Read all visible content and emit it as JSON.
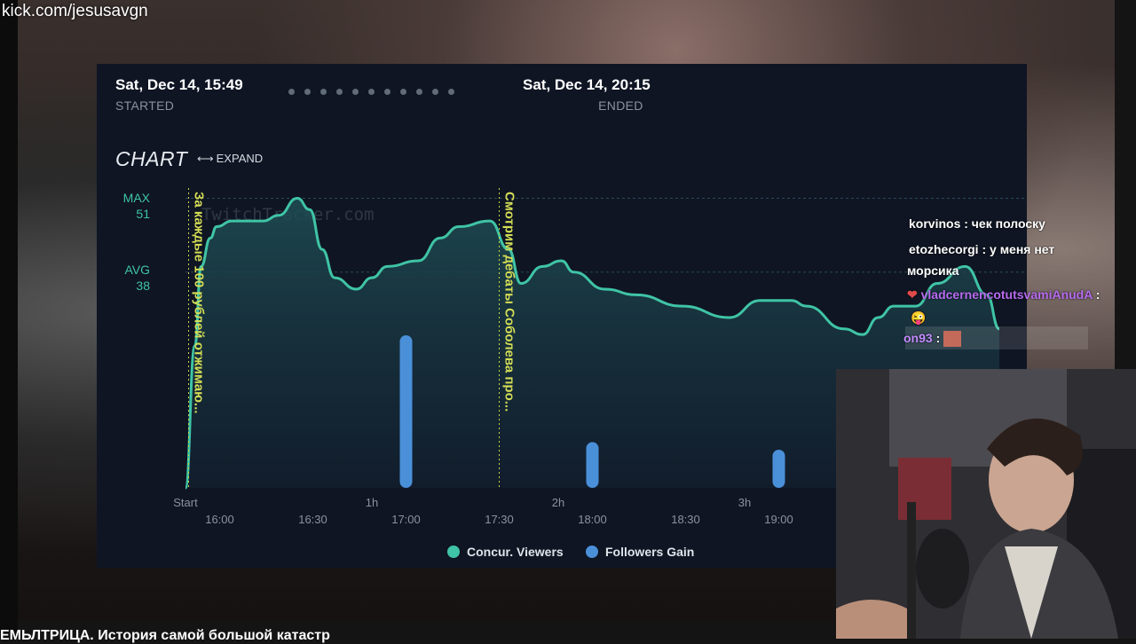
{
  "overlay": {
    "url": "kick.com/jesusavgn",
    "ticker": "ЕМЬЛТРИЦА. История самой большой катастр"
  },
  "tracker": {
    "started": {
      "time": "Sat, Dec 14, 15:49",
      "label": "STARTED"
    },
    "ended": {
      "time": "Sat, Dec 14, 20:15",
      "label": "ENDED"
    },
    "progress_dots": 11,
    "chart_title": "CHART",
    "expand_icon": "arrows-horizontal-icon",
    "expand_label": "EXPAND",
    "watermark": "TwitchTracker.com",
    "max": {
      "label": "MAX",
      "value": "51"
    },
    "avg": {
      "label": "AVG",
      "value": "38"
    },
    "legend": [
      {
        "label": "Concur. Viewers",
        "color": "#3fc4a5"
      },
      {
        "label": "Followers Gain",
        "color": "#4a90d9"
      }
    ]
  },
  "chart_data": {
    "type": "line",
    "x_unit": "minutes since start",
    "xlim": [
      0,
      266
    ],
    "ylim": [
      0,
      55
    ],
    "primary_ticks": [
      {
        "x": 0,
        "label": "Start"
      },
      {
        "x": 60,
        "label": "1h"
      },
      {
        "x": 120,
        "label": "2h"
      },
      {
        "x": 180,
        "label": "3h"
      }
    ],
    "time_ticks": [
      {
        "x": 11,
        "label": "16:00"
      },
      {
        "x": 41,
        "label": "16:30"
      },
      {
        "x": 71,
        "label": "17:00"
      },
      {
        "x": 101,
        "label": "17:30"
      },
      {
        "x": 131,
        "label": "18:00"
      },
      {
        "x": 161,
        "label": "18:30"
      },
      {
        "x": 191,
        "label": "19:00"
      }
    ],
    "annotations": [
      {
        "x": 1,
        "text": "За каждые 100 рублей отжимаю..."
      },
      {
        "x": 101,
        "text": "Смотрим дебаты Соболева про..."
      }
    ],
    "series": [
      {
        "name": "Concur. Viewers",
        "color": "#3fc4a5",
        "kind": "area",
        "points": [
          [
            0,
            0
          ],
          [
            3,
            25
          ],
          [
            5,
            39
          ],
          [
            8,
            44
          ],
          [
            10,
            46
          ],
          [
            15,
            47
          ],
          [
            25,
            47
          ],
          [
            30,
            48
          ],
          [
            36,
            51
          ],
          [
            40,
            49
          ],
          [
            44,
            42
          ],
          [
            48,
            37
          ],
          [
            55,
            35
          ],
          [
            60,
            37
          ],
          [
            65,
            39
          ],
          [
            75,
            40
          ],
          [
            82,
            44
          ],
          [
            88,
            46
          ],
          [
            98,
            47
          ],
          [
            104,
            42
          ],
          [
            108,
            36
          ],
          [
            115,
            39
          ],
          [
            121,
            40
          ],
          [
            125,
            38
          ],
          [
            135,
            35
          ],
          [
            145,
            34
          ],
          [
            160,
            32
          ],
          [
            175,
            30
          ],
          [
            185,
            33
          ],
          [
            195,
            33
          ],
          [
            200,
            32
          ],
          [
            212,
            28
          ],
          [
            218,
            27
          ],
          [
            223,
            30
          ],
          [
            228,
            32
          ],
          [
            235,
            32
          ],
          [
            242,
            36
          ],
          [
            251,
            39
          ],
          [
            258,
            34
          ],
          [
            262,
            28
          ]
        ]
      },
      {
        "name": "Followers Gain",
        "color": "#4a90d9",
        "kind": "bar",
        "points": [
          [
            71,
            10
          ],
          [
            131,
            3
          ],
          [
            191,
            2.5
          ]
        ]
      }
    ],
    "max": 51,
    "avg": 38
  },
  "chat": [
    {
      "user": "korvinos",
      "color": "#ffffff",
      "text": ": чек полоску"
    },
    {
      "user": "etozhecorgi",
      "color": "#ffffff",
      "text": ": у меня нет"
    },
    {
      "user": "",
      "color": "#ffffff",
      "text": "морсика"
    },
    {
      "user": "vladcernencotutsvamiAnudA",
      "color": "#b86bf0",
      "text": ":"
    },
    {
      "user": "on93",
      "color": "#c08cff",
      "text": ":"
    }
  ],
  "webcam": {
    "label": "streamer-webcam"
  }
}
